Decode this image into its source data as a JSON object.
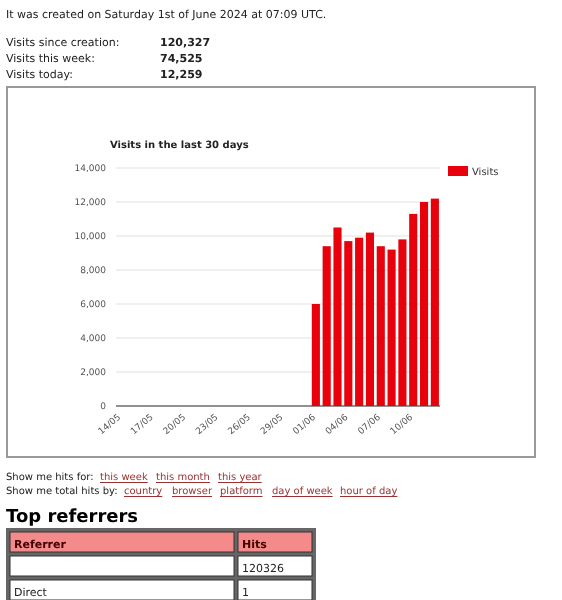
{
  "chart_data": {
    "type": "bar",
    "title": "Visits in the last 30 days",
    "categories": [
      "14/05",
      null,
      null,
      "17/05",
      null,
      null,
      "20/05",
      null,
      null,
      "23/05",
      null,
      null,
      "26/05",
      null,
      null,
      "29/05",
      null,
      null,
      "01/06",
      null,
      null,
      "04/06",
      null,
      null,
      "07/06",
      null,
      null,
      "10/06",
      null,
      null
    ],
    "series": [
      {
        "name": "Visits",
        "color": "#e8000b",
        "values": [
          null,
          null,
          null,
          null,
          null,
          null,
          null,
          null,
          null,
          null,
          null,
          null,
          null,
          null,
          null,
          null,
          null,
          null,
          6000,
          9400,
          10500,
          9700,
          9900,
          10200,
          9400,
          9200,
          9800,
          11300,
          12000,
          12200
        ]
      }
    ],
    "ylim": [
      0,
      14000
    ],
    "yticks": [
      {
        "value": 0,
        "label": "0"
      },
      {
        "value": 2000,
        "label": "2,000"
      },
      {
        "value": 4000,
        "label": "4,000"
      },
      {
        "value": 6000,
        "label": "6,000"
      },
      {
        "value": 8000,
        "label": "8,000"
      },
      {
        "value": 10000,
        "label": "10,000"
      },
      {
        "value": 12000,
        "label": "12,000"
      },
      {
        "value": 14000,
        "label": "14,000"
      }
    ],
    "grid": "y",
    "legend": "top right",
    "annotations": [
      "It was created on Saturday 1st of June 2024 at 07:09 UTC.",
      "Visits since creation:",
      "120,327",
      "Visits this week:",
      "74,525",
      "Visits today:",
      "12,259",
      "Show me hits for:",
      "this week",
      "this month",
      "this year",
      "Show me total hits by:",
      "country",
      "browser",
      "platform",
      "day of week",
      "hour of day",
      "Top referrers",
      "Referrer",
      "Hits",
      "120326",
      "Direct",
      "1"
    ]
  }
}
